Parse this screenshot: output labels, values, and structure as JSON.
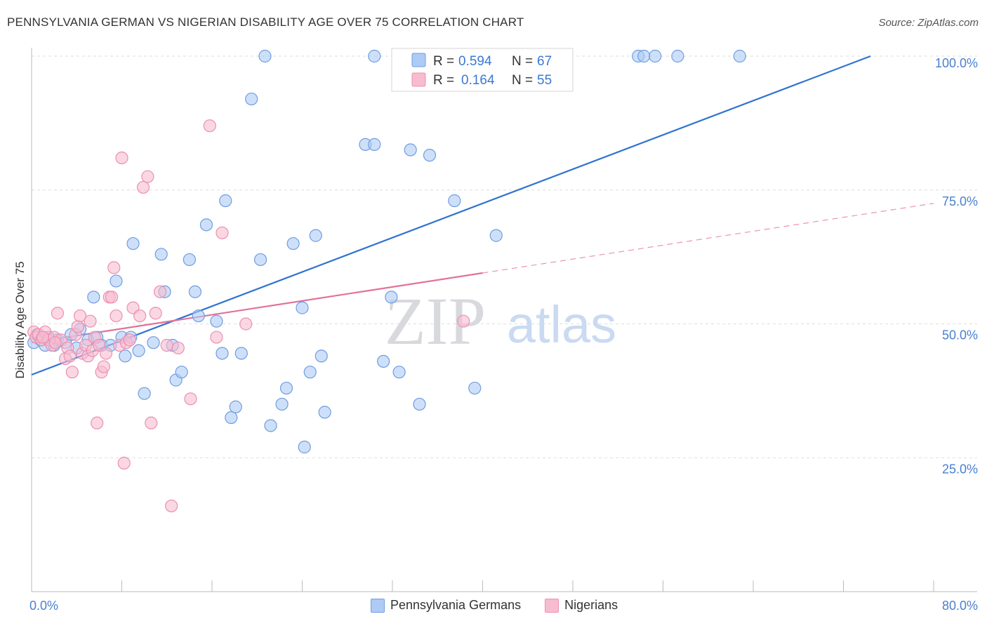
{
  "title": "PENNSYLVANIA GERMAN VS NIGERIAN DISABILITY AGE OVER 75 CORRELATION CHART",
  "source": "Source: ZipAtlas.com",
  "watermark": {
    "zip": "ZIP",
    "atlas": "atlas"
  },
  "colors": {
    "blue_fill": "#aecbf5",
    "blue_stroke": "#6e9de0",
    "blue_line": "#2f73d0",
    "pink_fill": "#f7bcd0",
    "pink_stroke": "#ec8fb0",
    "pink_line": "#e3709a",
    "axis_label": "#4a7fd0",
    "grid": "#dddddd"
  },
  "legend_stats": {
    "rows": [
      {
        "r_label": "R =",
        "r_value": "0.594",
        "n_label": "N =",
        "n_value": "67"
      },
      {
        "r_label": "R =",
        "r_value": "0.164",
        "n_label": "N =",
        "n_value": "55"
      }
    ]
  },
  "legend_bottom": {
    "series1": "Pennsylvania Germans",
    "series2": "Nigerians"
  },
  "chart_data": {
    "type": "scatter",
    "title": "PENNSYLVANIA GERMAN VS NIGERIAN DISABILITY AGE OVER 75 CORRELATION CHART",
    "xlabel": "",
    "ylabel": "Disability Age Over 75",
    "xlim": [
      0,
      80
    ],
    "ylim": [
      0,
      105
    ],
    "x_tick_labels": [
      {
        "value": 0,
        "label": "0.0%"
      },
      {
        "value": 80,
        "label": "80.0%"
      }
    ],
    "y_tick_labels": [
      {
        "value": 25,
        "label": "25.0%"
      },
      {
        "value": 50,
        "label": "50.0%"
      },
      {
        "value": 75,
        "label": "75.0%"
      },
      {
        "value": 100,
        "label": "100.0%"
      }
    ],
    "series": [
      {
        "name": "Pennsylvania Germans",
        "r": 0.594,
        "n": 67,
        "trend": {
          "x0": 0,
          "y0": 40.5,
          "x1": 74.4,
          "y1": 100,
          "dashed_to": 74.4
        },
        "points": [
          [
            0.2,
            46.5
          ],
          [
            0.5,
            48
          ],
          [
            0.8,
            47
          ],
          [
            1.2,
            46
          ],
          [
            1.5,
            47.5
          ],
          [
            2,
            46
          ],
          [
            2.3,
            47
          ],
          [
            3,
            46.5
          ],
          [
            3.5,
            48
          ],
          [
            4,
            45.5
          ],
          [
            4.3,
            49
          ],
          [
            5,
            47
          ],
          [
            5.5,
            55
          ],
          [
            5.8,
            47.5
          ],
          [
            6.2,
            46
          ],
          [
            7,
            46
          ],
          [
            7.5,
            58
          ],
          [
            8,
            47.5
          ],
          [
            8.3,
            44
          ],
          [
            8.8,
            47.5
          ],
          [
            9,
            65
          ],
          [
            9.5,
            45
          ],
          [
            10,
            37
          ],
          [
            10.8,
            46.5
          ],
          [
            11.5,
            63
          ],
          [
            11.8,
            56
          ],
          [
            12.5,
            46
          ],
          [
            12.8,
            39.5
          ],
          [
            13.3,
            41
          ],
          [
            14,
            62
          ],
          [
            14.5,
            56
          ],
          [
            14.8,
            51.5
          ],
          [
            15.5,
            68.5
          ],
          [
            16.4,
            50.5
          ],
          [
            16.9,
            44.5
          ],
          [
            17.2,
            73
          ],
          [
            17.7,
            32.5
          ],
          [
            18.1,
            34.5
          ],
          [
            18.6,
            44.5
          ],
          [
            19.5,
            92
          ],
          [
            20.3,
            62
          ],
          [
            20.7,
            100
          ],
          [
            21.2,
            31
          ],
          [
            22.2,
            35
          ],
          [
            22.6,
            38
          ],
          [
            23.2,
            65
          ],
          [
            24,
            53
          ],
          [
            24.2,
            27
          ],
          [
            24.7,
            41
          ],
          [
            25.2,
            66.5
          ],
          [
            25.7,
            44
          ],
          [
            26,
            33.5
          ],
          [
            29.6,
            83.5
          ],
          [
            30.4,
            83.5
          ],
          [
            30.4,
            100
          ],
          [
            31.2,
            43
          ],
          [
            31.9,
            55
          ],
          [
            32.6,
            41
          ],
          [
            33.6,
            82.5
          ],
          [
            34.4,
            35
          ],
          [
            35.3,
            81.5
          ],
          [
            37.5,
            73
          ],
          [
            39.3,
            38
          ],
          [
            41.2,
            66.5
          ],
          [
            53.8,
            100
          ],
          [
            54.3,
            100
          ],
          [
            55.3,
            100
          ],
          [
            57.3,
            100
          ],
          [
            62.8,
            100
          ]
        ]
      },
      {
        "name": "Nigerians",
        "r": 0.164,
        "n": 55,
        "trend": {
          "x0": 0,
          "y0": 46.5,
          "x1": 40,
          "y1": 59.5,
          "dashed_to": 80,
          "dashed_y": 72.5
        },
        "points": [
          [
            0.2,
            48.5
          ],
          [
            0.4,
            47.5
          ],
          [
            0.6,
            48
          ],
          [
            0.9,
            47
          ],
          [
            1.2,
            48.5
          ],
          [
            1.5,
            47
          ],
          [
            1.8,
            46
          ],
          [
            2,
            47.5
          ],
          [
            2.3,
            52
          ],
          [
            2.6,
            47
          ],
          [
            3,
            43.5
          ],
          [
            3.2,
            45.5
          ],
          [
            3.4,
            44
          ],
          [
            3.6,
            41
          ],
          [
            3.9,
            48
          ],
          [
            4.1,
            49.5
          ],
          [
            4.3,
            51.5
          ],
          [
            4.5,
            44.5
          ],
          [
            4.8,
            46
          ],
          [
            5,
            44
          ],
          [
            5.2,
            50.5
          ],
          [
            5.4,
            45
          ],
          [
            5.6,
            47.5
          ],
          [
            5.8,
            31.5
          ],
          [
            6,
            46
          ],
          [
            6.2,
            41
          ],
          [
            6.4,
            42
          ],
          [
            6.6,
            44.5
          ],
          [
            6.9,
            55
          ],
          [
            7.1,
            55
          ],
          [
            7.3,
            60.5
          ],
          [
            7.5,
            51.5
          ],
          [
            7.8,
            46
          ],
          [
            8,
            81
          ],
          [
            8.2,
            24
          ],
          [
            8.4,
            46.5
          ],
          [
            8.7,
            47
          ],
          [
            9,
            53
          ],
          [
            9.6,
            51.5
          ],
          [
            9.9,
            75.5
          ],
          [
            10.3,
            77.5
          ],
          [
            10.6,
            31.5
          ],
          [
            11,
            52
          ],
          [
            11.4,
            56
          ],
          [
            12,
            46
          ],
          [
            12.4,
            16
          ],
          [
            13,
            45.5
          ],
          [
            14.1,
            36
          ],
          [
            15.8,
            87
          ],
          [
            16.4,
            47.5
          ],
          [
            16.9,
            67
          ],
          [
            19,
            50
          ],
          [
            38.3,
            50.5
          ],
          [
            2.1,
            46.5
          ],
          [
            1.0,
            47.5
          ]
        ]
      }
    ]
  }
}
